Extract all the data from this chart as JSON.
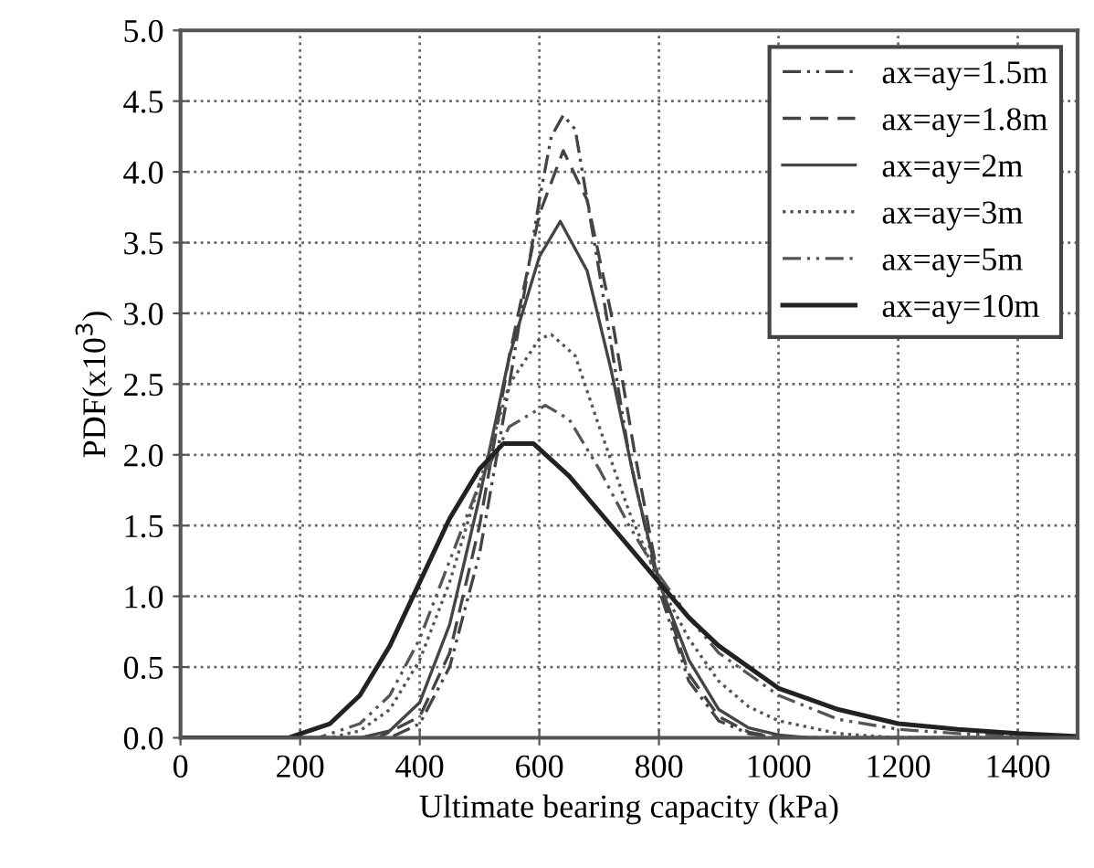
{
  "chart_data": {
    "type": "line",
    "xlabel": "Ultimate bearing capacity (kPa)",
    "ylabel": "PDF(x10$^{3}$)",
    "xlim": [
      0,
      1500
    ],
    "xticks": [
      0,
      200,
      400,
      600,
      800,
      1000,
      1200,
      1400
    ],
    "ylim": [
      0,
      5.0
    ],
    "yticks": [
      {
        "value": 0,
        "label": "0.0"
      },
      {
        "value": 0.5,
        "label": "0.5"
      },
      {
        "value": 1,
        "label": "1.0"
      },
      {
        "value": 1.5,
        "label": "1.5"
      },
      {
        "value": 2,
        "label": "2.0"
      },
      {
        "value": 2.5,
        "label": "2.5"
      },
      {
        "value": 3,
        "label": "3.0"
      },
      {
        "value": 3.5,
        "label": "3.5"
      },
      {
        "value": 4,
        "label": "4.0"
      },
      {
        "value": 4.5,
        "label": "4.5"
      },
      {
        "value": 5,
        "label": "5.0"
      }
    ],
    "grid": true,
    "legend": "top right",
    "marker": "none",
    "series": [
      {
        "name": "ax=ay=1.5m",
        "color": "#444444",
        "line_style": "dashdot",
        "x": [
          0,
          350,
          400,
          450,
          500,
          550,
          600,
          620,
          640,
          660,
          700,
          750,
          800,
          850,
          900,
          950,
          1000,
          1500
        ],
        "values": [
          0,
          0,
          0.1,
          0.5,
          1.3,
          2.5,
          3.8,
          4.25,
          4.4,
          4.3,
          3.3,
          2.0,
          1.05,
          0.4,
          0.12,
          0.03,
          0,
          0
        ]
      },
      {
        "name": "ax=ay=1.8m",
        "color": "#444444",
        "line_style": "dashed",
        "x": [
          0,
          330,
          400,
          450,
          500,
          550,
          600,
          640,
          680,
          720,
          760,
          800,
          850,
          900,
          950,
          1000,
          1500
        ],
        "values": [
          0,
          0,
          0.15,
          0.6,
          1.5,
          2.7,
          3.7,
          4.15,
          3.8,
          3.0,
          2.0,
          1.1,
          0.45,
          0.15,
          0.04,
          0,
          0
        ]
      },
      {
        "name": "ax=ay=2m",
        "color": "#444444",
        "line_style": "solid",
        "x": [
          0,
          300,
          350,
          400,
          450,
          500,
          550,
          600,
          635,
          680,
          720,
          760,
          800,
          850,
          900,
          950,
          1000,
          1050,
          1500
        ],
        "values": [
          0,
          0,
          0.05,
          0.25,
          0.8,
          1.7,
          2.7,
          3.4,
          3.65,
          3.3,
          2.6,
          1.8,
          1.1,
          0.55,
          0.2,
          0.07,
          0.02,
          0,
          0
        ]
      },
      {
        "name": "ax=ay=3m",
        "color": "#555555",
        "line_style": "dotted",
        "x": [
          0,
          250,
          300,
          350,
          400,
          450,
          500,
          550,
          600,
          620,
          660,
          700,
          750,
          800,
          850,
          900,
          950,
          1000,
          1100,
          1200,
          1500
        ],
        "values": [
          0,
          0,
          0.05,
          0.2,
          0.55,
          1.1,
          1.8,
          2.5,
          2.82,
          2.85,
          2.7,
          2.2,
          1.6,
          1.1,
          0.7,
          0.4,
          0.22,
          0.12,
          0.03,
          0,
          0
        ]
      },
      {
        "name": "ax=ay=5m",
        "color": "#555555",
        "line_style": "dashdot",
        "x": [
          0,
          230,
          300,
          350,
          400,
          450,
          500,
          550,
          610,
          650,
          700,
          750,
          800,
          850,
          900,
          1000,
          1100,
          1200,
          1300,
          1500
        ],
        "values": [
          0,
          0,
          0.1,
          0.3,
          0.7,
          1.25,
          1.8,
          2.2,
          2.35,
          2.25,
          1.9,
          1.5,
          1.15,
          0.85,
          0.6,
          0.3,
          0.13,
          0.06,
          0.03,
          0
        ]
      },
      {
        "name": "ax=ay=10m",
        "color": "#222222",
        "line_style": "solid",
        "x": [
          0,
          180,
          250,
          300,
          350,
          400,
          450,
          500,
          540,
          590,
          650,
          700,
          750,
          800,
          850,
          900,
          1000,
          1100,
          1200,
          1300,
          1400,
          1500
        ],
        "values": [
          0,
          0,
          0.1,
          0.3,
          0.65,
          1.1,
          1.55,
          1.9,
          2.08,
          2.08,
          1.85,
          1.6,
          1.35,
          1.1,
          0.85,
          0.65,
          0.35,
          0.2,
          0.1,
          0.06,
          0.03,
          0.01
        ]
      }
    ]
  }
}
